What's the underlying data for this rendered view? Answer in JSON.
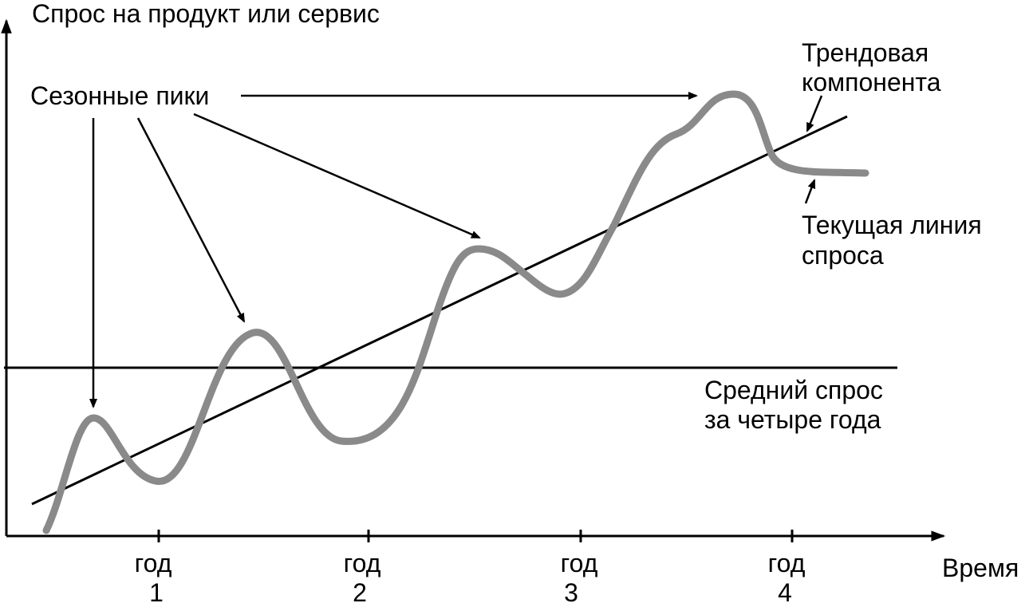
{
  "y_axis_label": "Спрос на продукт или сервис",
  "x_axis_label": "Время",
  "annotations": {
    "seasonal_peaks": "Сезонные пики",
    "trend_line1": "Трендовая",
    "trend_line2": "компонента",
    "current_line1": "Текущая линия",
    "current_line2": "спроса",
    "average_line1": "Средний спрос",
    "average_line2": "за четыре года"
  },
  "ticks": [
    {
      "word": "год",
      "num": "1"
    },
    {
      "word": "год",
      "num": "2"
    },
    {
      "word": "год",
      "num": "3"
    },
    {
      "word": "год",
      "num": "4"
    }
  ],
  "colors": {
    "ink": "#000000",
    "demand_curve": "#8a8a8a",
    "background": "#ffffff"
  }
}
